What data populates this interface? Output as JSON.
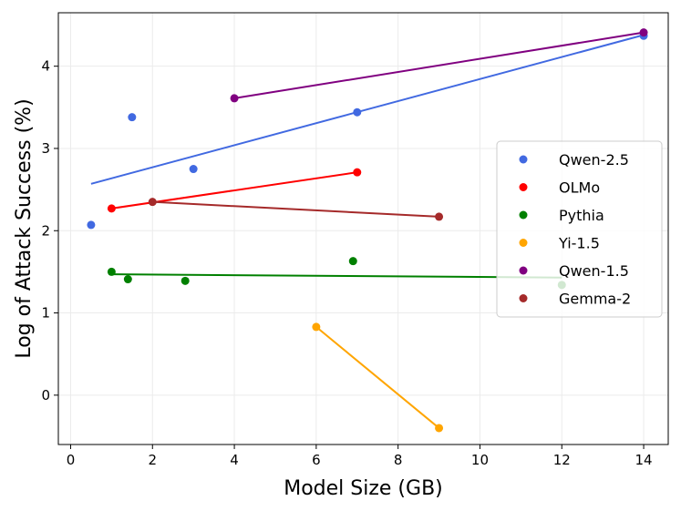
{
  "chart_data": {
    "type": "scatter",
    "title": "",
    "xlabel": "Model Size (GB)",
    "ylabel": "Log of Attack Success (%)",
    "xlim": [
      -0.3,
      14.6
    ],
    "ylim": [
      -0.6,
      4.65
    ],
    "xticks": [
      0,
      2,
      4,
      6,
      8,
      10,
      12,
      14
    ],
    "yticks": [
      0,
      1,
      2,
      3,
      4
    ],
    "grid": true,
    "legend_position": "center-right",
    "series": [
      {
        "name": "Qwen-2.5",
        "color": "#4169e1",
        "points": [
          [
            0.5,
            2.07
          ],
          [
            1.5,
            3.38
          ],
          [
            3,
            2.75
          ],
          [
            7,
            3.44
          ],
          [
            14,
            4.37
          ]
        ],
        "fit": [
          [
            0.5,
            2.57
          ],
          [
            14,
            4.38
          ]
        ]
      },
      {
        "name": "OLMo",
        "color": "#ff0000",
        "points": [
          [
            1,
            2.27
          ],
          [
            7,
            2.71
          ]
        ],
        "fit": [
          [
            1,
            2.27
          ],
          [
            7,
            2.71
          ]
        ]
      },
      {
        "name": "Pythia",
        "color": "#008000",
        "points": [
          [
            1,
            1.5
          ],
          [
            1.4,
            1.41
          ],
          [
            2.8,
            1.39
          ],
          [
            6.9,
            1.63
          ],
          [
            12,
            1.34
          ]
        ],
        "fit": [
          [
            1,
            1.47
          ],
          [
            12,
            1.43
          ]
        ]
      },
      {
        "name": "Yi-1.5",
        "color": "#ffa500",
        "points": [
          [
            6,
            0.83
          ],
          [
            9,
            -0.4
          ]
        ],
        "fit": [
          [
            6,
            0.83
          ],
          [
            9,
            -0.4
          ]
        ]
      },
      {
        "name": "Qwen-1.5",
        "color": "#800080",
        "points": [
          [
            4,
            3.61
          ],
          [
            14,
            4.41
          ]
        ],
        "fit": [
          [
            4,
            3.61
          ],
          [
            14,
            4.41
          ]
        ]
      },
      {
        "name": "Gemma-2",
        "color": "#a52a2a",
        "points": [
          [
            2,
            2.35
          ],
          [
            9,
            2.17
          ]
        ],
        "fit": [
          [
            2,
            2.35
          ],
          [
            9,
            2.17
          ]
        ]
      }
    ]
  }
}
